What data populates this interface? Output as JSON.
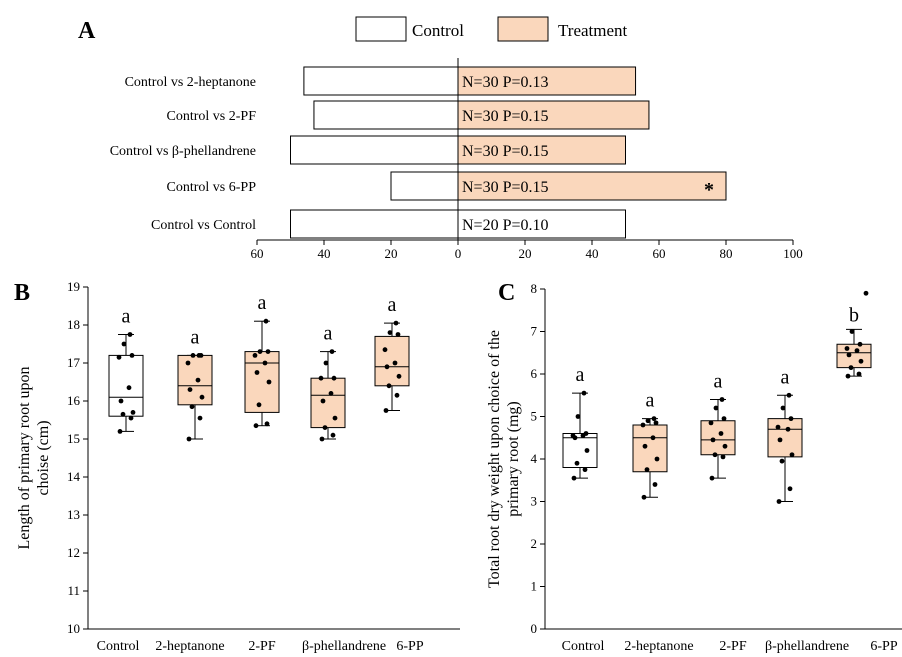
{
  "colors": {
    "treatment": "#fad7bc",
    "control": "#ffffff",
    "stroke": "#000000"
  },
  "chart_data": [
    {
      "panel": "A",
      "type": "bar",
      "orientation": "horizontal-diverging",
      "legend": {
        "placement": "top",
        "entries": [
          "Control",
          "Treatment"
        ]
      },
      "categories": [
        "Control vs 2-heptanone",
        "Control vs 2-PF",
        "Control vs β-phellandrene",
        "Control vs 6-PP",
        "Control vs Control"
      ],
      "series": [
        {
          "name": "Control",
          "values": [
            46,
            43,
            50,
            20,
            50
          ]
        },
        {
          "name": "Treatment",
          "values": [
            53,
            57,
            50,
            80,
            50
          ]
        }
      ],
      "labels": [
        "N=30  P=0.13",
        "N=30  P=0.15",
        "N=30  P=0.15",
        "N=30  P=0.15",
        "N=20  P=0.10"
      ],
      "significance": [
        "",
        "",
        "",
        "*",
        ""
      ],
      "xlim": [
        -60,
        100
      ],
      "xticks": [
        -60,
        -40,
        -20,
        0,
        20,
        40,
        60,
        80,
        100
      ],
      "xtick_labels": [
        "60",
        "40",
        "20",
        "0",
        "20",
        "40",
        "60",
        "80",
        "100"
      ]
    },
    {
      "panel": "B",
      "type": "box",
      "ylabel_lines": [
        "Length of primary root upon",
        "choise (cm)"
      ],
      "ylim": [
        10,
        19
      ],
      "yticks": [
        10,
        11,
        12,
        13,
        14,
        15,
        16,
        17,
        18,
        19
      ],
      "categories": [
        "Control",
        "2-heptanone",
        "2-PF",
        "β-phellandrene",
        "6-PP"
      ],
      "boxes": [
        {
          "min": 15.2,
          "q1": 15.6,
          "median": 16.1,
          "q3": 17.2,
          "max": 17.75,
          "letter": "a",
          "points": [
            15.2,
            15.55,
            15.65,
            15.7,
            16.0,
            16.35,
            17.15,
            17.2,
            17.5,
            17.75
          ]
        },
        {
          "min": 15.0,
          "q1": 15.9,
          "median": 16.4,
          "q3": 17.2,
          "max": 17.2,
          "letter": "a",
          "points": [
            15.0,
            15.55,
            15.85,
            16.1,
            16.3,
            16.55,
            17.0,
            17.2,
            17.2,
            17.2
          ]
        },
        {
          "min": 15.35,
          "q1": 15.7,
          "median": 17.0,
          "q3": 17.3,
          "max": 18.1,
          "letter": "a",
          "points": [
            15.35,
            15.4,
            15.9,
            16.5,
            16.75,
            17.0,
            17.2,
            17.3,
            17.3,
            18.1
          ]
        },
        {
          "min": 15.0,
          "q1": 15.3,
          "median": 16.15,
          "q3": 16.6,
          "max": 17.3,
          "letter": "a",
          "points": [
            15.0,
            15.1,
            15.3,
            15.55,
            16.0,
            16.2,
            16.6,
            16.6,
            17.0,
            17.3
          ]
        },
        {
          "min": 15.75,
          "q1": 16.4,
          "median": 16.9,
          "q3": 17.7,
          "max": 18.05,
          "letter": "a",
          "points": [
            15.75,
            16.15,
            16.4,
            16.65,
            16.9,
            17.0,
            17.35,
            17.75,
            17.8,
            18.05
          ]
        }
      ]
    },
    {
      "panel": "C",
      "type": "box",
      "ylabel_lines": [
        "Total root dry weight upon choice of the",
        "primary root (mg)"
      ],
      "ylim": [
        0,
        8
      ],
      "yticks": [
        0,
        1,
        2,
        3,
        4,
        5,
        6,
        7,
        8
      ],
      "categories": [
        "Control",
        "2-heptanone",
        "2-PF",
        "β-phellandrene",
        "6-PP"
      ],
      "boxes": [
        {
          "min": 3.55,
          "q1": 3.8,
          "median": 4.5,
          "q3": 4.6,
          "max": 5.55,
          "letter": "a",
          "points": [
            3.55,
            3.75,
            3.9,
            4.2,
            4.5,
            4.55,
            4.55,
            4.6,
            5.0,
            5.55
          ]
        },
        {
          "min": 3.1,
          "q1": 3.7,
          "median": 4.5,
          "q3": 4.8,
          "max": 4.95,
          "letter": "a",
          "points": [
            3.1,
            3.4,
            3.75,
            4.0,
            4.3,
            4.5,
            4.8,
            4.85,
            4.9,
            4.95
          ]
        },
        {
          "min": 3.55,
          "q1": 4.1,
          "median": 4.45,
          "q3": 4.9,
          "max": 5.4,
          "letter": "a",
          "points": [
            3.55,
            4.05,
            4.1,
            4.3,
            4.45,
            4.6,
            4.85,
            4.95,
            5.2,
            5.4
          ]
        },
        {
          "min": 3.0,
          "q1": 4.05,
          "median": 4.7,
          "q3": 4.95,
          "max": 5.5,
          "letter": "a",
          "points": [
            3.0,
            3.3,
            3.95,
            4.1,
            4.45,
            4.7,
            4.75,
            4.95,
            5.2,
            5.5
          ]
        },
        {
          "min": 5.95,
          "q1": 6.15,
          "median": 6.5,
          "q3": 6.7,
          "max": 7.05,
          "letter": "b",
          "points": [
            5.95,
            6.0,
            6.15,
            6.3,
            6.45,
            6.55,
            6.6,
            6.7,
            7.0,
            7.9
          ]
        }
      ]
    }
  ]
}
